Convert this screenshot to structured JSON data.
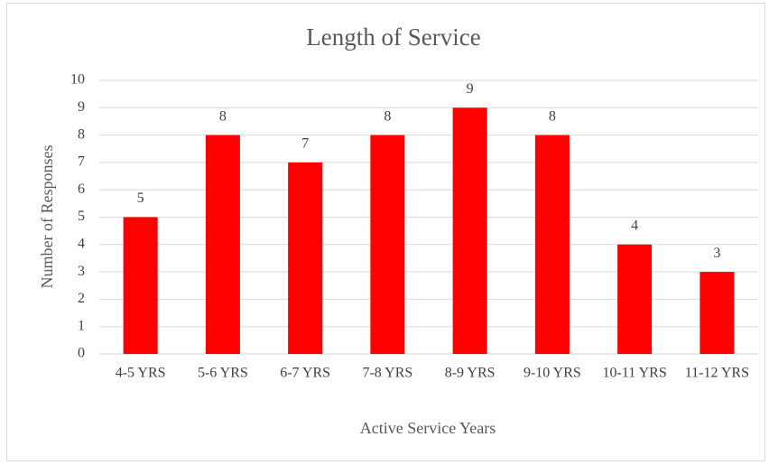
{
  "chart_data": {
    "type": "bar",
    "title": "Length of Service",
    "x_label": "Active Service Years",
    "y_label": "Number of Responses",
    "categories": [
      "4-5 YRS",
      "5-6 YRS",
      "6-7 YRS",
      "7-8 YRS",
      "8-9 YRS",
      "9-10 YRS",
      "10-11 YRS",
      "11-12 YRS"
    ],
    "values": [
      5,
      8,
      7,
      8,
      9,
      8,
      4,
      3
    ],
    "color": "#ff0000",
    "ylim": [
      0,
      10
    ],
    "yticks": [
      0,
      1,
      2,
      3,
      4,
      5,
      6,
      7,
      8,
      9,
      10
    ],
    "grid": true,
    "data_labels": true
  }
}
